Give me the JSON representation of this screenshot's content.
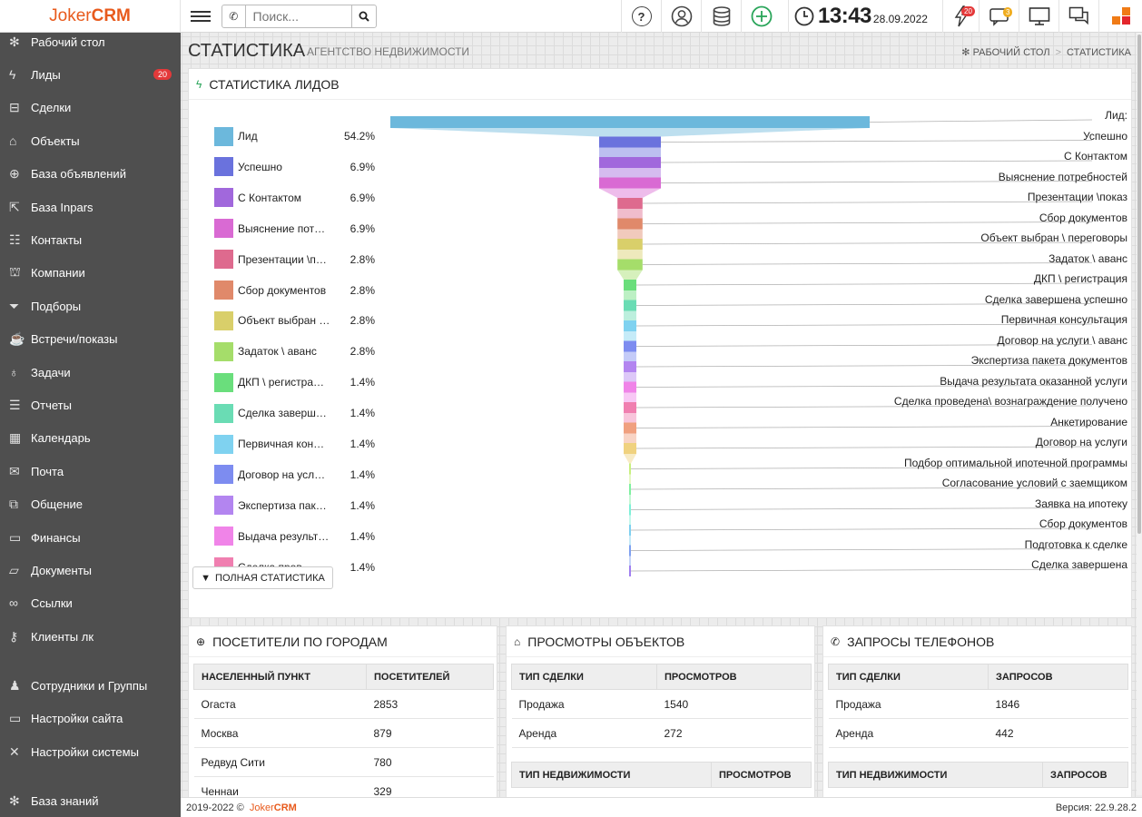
{
  "app": {
    "logo_part1": "Joker",
    "logo_part2": "CRM"
  },
  "topbar": {
    "search_placeholder": "Поиск...",
    "time": "13:43",
    "date": "28.09.2022",
    "lightning_badge": "20",
    "msg_badge": "3"
  },
  "sidebar": {
    "items": [
      {
        "label": "Рабочий стол",
        "icon": "gear-icon",
        "glyph": "✻"
      },
      {
        "label": "Лиды",
        "icon": "lightning-icon",
        "glyph": "ϟ",
        "badge": "20"
      },
      {
        "label": "Сделки",
        "icon": "briefcase-icon",
        "glyph": "⊟"
      },
      {
        "label": "Объекты",
        "icon": "home-icon",
        "glyph": "⌂"
      },
      {
        "label": "База объявлений",
        "icon": "globe-icon",
        "glyph": "⊕"
      },
      {
        "label": "База Inpars",
        "icon": "export-icon",
        "glyph": "⇱"
      },
      {
        "label": "Контакты",
        "icon": "contacts-icon",
        "glyph": "☷"
      },
      {
        "label": "Компании",
        "icon": "bank-icon",
        "glyph": "⛫"
      },
      {
        "label": "Подборы",
        "icon": "filter-icon",
        "glyph": "⏷"
      },
      {
        "label": "Встречи/показы",
        "icon": "coffee-icon",
        "glyph": "☕"
      },
      {
        "label": "Задачи",
        "icon": "bulb-icon",
        "glyph": "♁"
      },
      {
        "label": "Отчеты",
        "icon": "clipboard-icon",
        "glyph": "☰"
      },
      {
        "label": "Календарь",
        "icon": "calendar-icon",
        "glyph": "▦"
      },
      {
        "label": "Почта",
        "icon": "mail-icon",
        "glyph": "✉"
      },
      {
        "label": "Общение",
        "icon": "chat-icon",
        "glyph": "⧉"
      },
      {
        "label": "Финансы",
        "icon": "money-icon",
        "glyph": "▭"
      },
      {
        "label": "Документы",
        "icon": "folder-icon",
        "glyph": "▱"
      },
      {
        "label": "Ссылки",
        "icon": "link-icon",
        "glyph": "∞"
      },
      {
        "label": "Клиенты лк",
        "icon": "key-icon",
        "glyph": "⚷"
      },
      {
        "label": "Сотрудники и Группы",
        "icon": "users-icon",
        "glyph": "♟"
      },
      {
        "label": "Настройки сайта",
        "icon": "monitor-icon",
        "glyph": "▭"
      },
      {
        "label": "Настройки системы",
        "icon": "tools-icon",
        "glyph": "✕"
      },
      {
        "label": "База знаний",
        "icon": "gear-icon",
        "glyph": "✻"
      }
    ]
  },
  "page": {
    "title": "СТАТИСТИКА",
    "subtitle": "АГЕНТСТВО НЕДВИЖИМОСТИ",
    "crumb_home": "РАБОЧИЙ СТОЛ",
    "crumb_current": "СТАТИСТИКА"
  },
  "leads_panel": {
    "title": "СТАТИСТИКА ЛИДОВ",
    "full_stats_button": "ПОЛНАЯ СТАТИСТИКА"
  },
  "chart_data": {
    "type": "funnel",
    "legend": [
      {
        "label": "Лид",
        "percent": "54.2%",
        "color": "#6cb8dc"
      },
      {
        "label": "Успешно",
        "percent": "6.9%",
        "color": "#6a72dd"
      },
      {
        "label": "С Контактом",
        "percent": "6.9%",
        "color": "#a168dc"
      },
      {
        "label": "Выяснение пот…",
        "percent": "6.9%",
        "color": "#d96ad3"
      },
      {
        "label": "Презентации \\п…",
        "percent": "2.8%",
        "color": "#de6a8e"
      },
      {
        "label": "Сбор документов",
        "percent": "2.8%",
        "color": "#e0896a"
      },
      {
        "label": "Объект выбран …",
        "percent": "2.8%",
        "color": "#d9cf6a"
      },
      {
        "label": "Задаток \\ аванс",
        "percent": "2.8%",
        "color": "#a5dd6a"
      },
      {
        "label": "ДКП \\ регистра…",
        "percent": "1.4%",
        "color": "#6ade7c"
      },
      {
        "label": "Сделка заверш…",
        "percent": "1.4%",
        "color": "#6adcb4"
      },
      {
        "label": "Первичная кон…",
        "percent": "1.4%",
        "color": "#7fd2f0"
      },
      {
        "label": "Договор на усл…",
        "percent": "1.4%",
        "color": "#7d8cf0"
      },
      {
        "label": "Экспертиза пак…",
        "percent": "1.4%",
        "color": "#b385f0"
      },
      {
        "label": "Выдача результ…",
        "percent": "1.4%",
        "color": "#f084e8"
      },
      {
        "label": "Сделка пров…",
        "percent": "1.4%",
        "color": "#f07fb0"
      }
    ],
    "stages": [
      {
        "name": "Лид:",
        "value": 54.2,
        "color": "#6cb8dc"
      },
      {
        "name": "Успешно",
        "value": 6.9,
        "color": "#6a72dd"
      },
      {
        "name": "С Контактом",
        "value": 6.9,
        "color": "#a168dc"
      },
      {
        "name": "Выяснение потребностей",
        "value": 6.9,
        "color": "#d96ad3"
      },
      {
        "name": "Презентации \\показ",
        "value": 2.8,
        "color": "#de6a8e"
      },
      {
        "name": "Сбор документов",
        "value": 2.8,
        "color": "#e0896a"
      },
      {
        "name": "Объект выбран \\ переговоры",
        "value": 2.8,
        "color": "#d9cf6a"
      },
      {
        "name": "Задаток \\ аванс",
        "value": 2.8,
        "color": "#a5dd6a"
      },
      {
        "name": "ДКП \\ регистрация",
        "value": 1.4,
        "color": "#6ade7c"
      },
      {
        "name": "Сделка завершена успешно",
        "value": 1.4,
        "color": "#6adcb4"
      },
      {
        "name": "Первичная консультация",
        "value": 1.4,
        "color": "#7fd2f0"
      },
      {
        "name": "Договор на услуги \\ аванс",
        "value": 1.4,
        "color": "#7d8cf0"
      },
      {
        "name": "Экспертиза пакета документов",
        "value": 1.4,
        "color": "#b385f0"
      },
      {
        "name": "Выдача результата оказанной услуги",
        "value": 1.4,
        "color": "#f084e8"
      },
      {
        "name": "Сделка проведена\\ вознаграждение получено",
        "value": 1.4,
        "color": "#f07fb0"
      },
      {
        "name": "Анкетирование",
        "value": 1.4,
        "color": "#f0a07f"
      },
      {
        "name": "Договор на услуги",
        "value": 1.4,
        "color": "#f0d27f"
      },
      {
        "name": "Подбор оптимальной ипотечной программы",
        "value": 0,
        "color": "#c8f07f"
      },
      {
        "name": "Согласование условий с заемщиком",
        "value": 0,
        "color": "#7ff0a0"
      },
      {
        "name": "Заявка на ипотеку",
        "value": 0,
        "color": "#7ff0d8"
      },
      {
        "name": "Сбор документов",
        "value": 0,
        "color": "#7fd0f0"
      },
      {
        "name": "Подготовка к сделке",
        "value": 0,
        "color": "#7fa0f0"
      },
      {
        "name": "Сделка завершена",
        "value": 0,
        "color": "#a07ff0"
      }
    ]
  },
  "cities_panel": {
    "title": "ПОСЕТИТЕЛИ ПО ГОРОДАМ",
    "col1": "НАСЕЛЕННЫЙ ПУНКТ",
    "col2": "ПОСЕТИТЕЛЕЙ",
    "rows": [
      {
        "c": "Огаста",
        "v": "2853"
      },
      {
        "c": "Москва",
        "v": "879"
      },
      {
        "c": "Редвуд Сити",
        "v": "780"
      },
      {
        "c": "Ченнаи",
        "v": "329"
      }
    ]
  },
  "views_panel": {
    "title": "ПРОСМОТРЫ ОБЪЕКТОВ",
    "col1": "ТИП СДЕЛКИ",
    "col2": "ПРОСМОТРОВ",
    "rows": [
      {
        "c": "Продажа",
        "v": "1540"
      },
      {
        "c": "Аренда",
        "v": "272"
      }
    ],
    "t2col1": "ТИП НЕДВИЖИМОСТИ",
    "t2col2": "ПРОСМОТРОВ"
  },
  "calls_panel": {
    "title": "ЗАПРОСЫ ТЕЛЕФОНОВ",
    "col1": "ТИП СДЕЛКИ",
    "col2": "ЗАПРОСОВ",
    "rows": [
      {
        "c": "Продажа",
        "v": "1846"
      },
      {
        "c": "Аренда",
        "v": "442"
      }
    ],
    "t2col1": "ТИП НЕДВИЖИМОСТИ",
    "t2col2": "ЗАПРОСОВ"
  },
  "footer": {
    "copyright": "2019-2022 ©",
    "brand_a": "Joker",
    "brand_b": "CRM",
    "version": "Версия: 22.9.28.2"
  }
}
